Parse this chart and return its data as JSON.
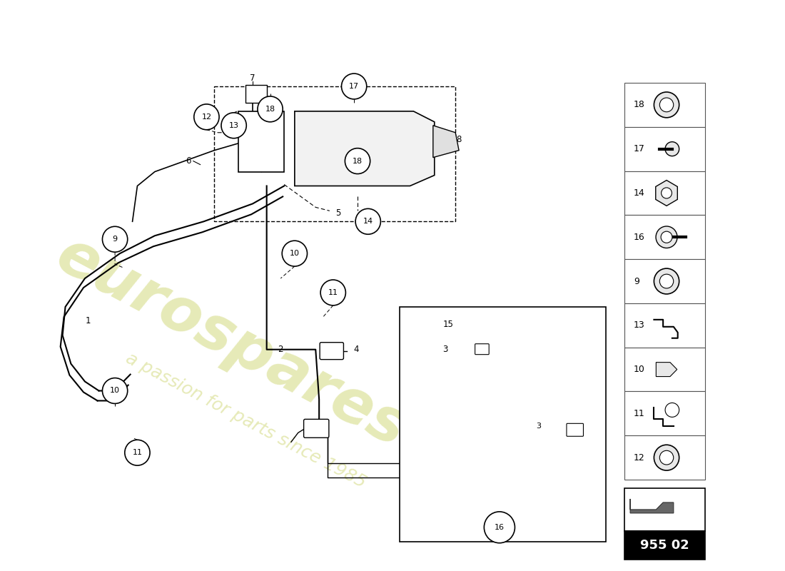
{
  "bg": "#ffffff",
  "wm1": "eurospares",
  "wm2": "a passion for parts since 1985",
  "part_no": "955 02",
  "sidebar_order": [
    18,
    17,
    14,
    16,
    9,
    13,
    10,
    11,
    12
  ],
  "fig_w": 11.0,
  "fig_h": 8.0,
  "dpi": 100
}
